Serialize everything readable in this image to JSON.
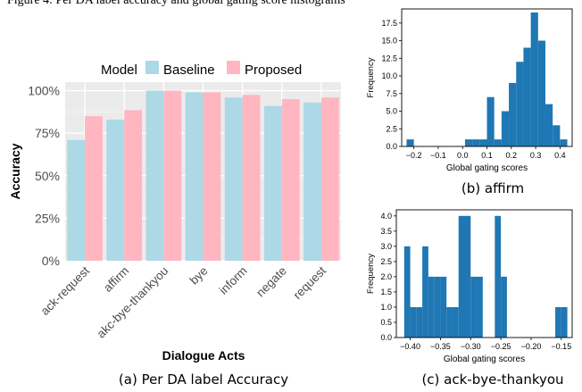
{
  "header_fragment": "Figure 4: Per DA label accuracy and global gating score histograms",
  "captions": {
    "a": "(a) Per DA label Accuracy",
    "b": "(b) affirm",
    "c": "(c) ack-bye-thankyou"
  },
  "colors": {
    "baseline": "#add8e6",
    "proposed": "#ffb6c1",
    "hist": "#1f77b4",
    "panel_bg": "#ebebeb"
  },
  "chart_data": [
    {
      "type": "bar",
      "legend_title": "Model",
      "legend_position": "top",
      "xlabel": "Dialogue Acts",
      "ylabel": "Accuracy",
      "ylim": [
        0,
        1.05
      ],
      "yticks": [
        0,
        0.25,
        0.5,
        0.75,
        1.0
      ],
      "ytick_labels": [
        "0%",
        "25%",
        "50%",
        "75%",
        "100%"
      ],
      "grid": true,
      "categories": [
        "ack-request",
        "affirm",
        "akc-bye-thankyou",
        "bye",
        "inform",
        "negate",
        "request"
      ],
      "series": [
        {
          "name": "Baseline",
          "values": [
            0.71,
            0.83,
            1.0,
            0.99,
            0.96,
            0.91,
            0.93
          ]
        },
        {
          "name": "Proposed",
          "values": [
            0.85,
            0.885,
            1.0,
            0.99,
            0.975,
            0.95,
            0.96
          ]
        }
      ]
    },
    {
      "type": "bar",
      "subtype": "histogram",
      "xlabel": "Global gating scores",
      "ylabel": "Frequency",
      "xlim": [
        -0.25,
        0.45
      ],
      "ylim": [
        0,
        19.5
      ],
      "xticks": [
        -0.2,
        -0.1,
        0.0,
        0.1,
        0.2,
        0.3,
        0.4
      ],
      "xtick_labels": [
        "−0.2",
        "−0.1",
        "0.0",
        "0.1",
        "0.2",
        "0.3",
        "0.4"
      ],
      "yticks": [
        0,
        2.5,
        5,
        7.5,
        10,
        12.5,
        15,
        17.5
      ],
      "ytick_labels": [
        "0.0",
        "2.5",
        "5.0",
        "7.5",
        "10.0",
        "12.5",
        "15.0",
        "17.5"
      ],
      "bin_edges": [
        -0.23,
        -0.2,
        -0.17,
        -0.14,
        -0.11,
        -0.08,
        -0.05,
        -0.02,
        0.01,
        0.04,
        0.07,
        0.1,
        0.13,
        0.16,
        0.19,
        0.22,
        0.25,
        0.28,
        0.31,
        0.34,
        0.37,
        0.4,
        0.43
      ],
      "counts": [
        1,
        0,
        0,
        0,
        0,
        0,
        0,
        0,
        1,
        1,
        1,
        7,
        1,
        5,
        9,
        12,
        14,
        19,
        15,
        6,
        3,
        1
      ]
    },
    {
      "type": "bar",
      "subtype": "histogram",
      "xlabel": "Global gating scores",
      "ylabel": "Frequency",
      "xlim": [
        -0.423,
        -0.132
      ],
      "ylim": [
        0,
        4.2
      ],
      "xticks": [
        -0.4,
        -0.35,
        -0.3,
        -0.25,
        -0.2,
        -0.15
      ],
      "xtick_labels": [
        "−0.40",
        "−0.35",
        "−0.30",
        "−0.25",
        "−0.20",
        "−0.15"
      ],
      "yticks": [
        0,
        0.5,
        1,
        1.5,
        2,
        2.5,
        3,
        3.5,
        4
      ],
      "ytick_labels": [
        "0.0",
        "0.5",
        "1.0",
        "1.5",
        "2.0",
        "2.5",
        "3.0",
        "3.5",
        "4.0"
      ],
      "bin_edges": [
        -0.41,
        -0.4,
        -0.39,
        -0.38,
        -0.37,
        -0.36,
        -0.35,
        -0.34,
        -0.33,
        -0.32,
        -0.31,
        -0.3,
        -0.29,
        -0.28,
        -0.27,
        -0.26,
        -0.25,
        -0.24,
        -0.23,
        -0.22,
        -0.21,
        -0.2,
        -0.19,
        -0.18,
        -0.17,
        -0.16,
        -0.15,
        -0.14
      ],
      "counts": [
        3,
        1,
        1,
        3,
        2,
        2,
        2,
        1,
        1,
        4,
        4,
        2,
        2,
        0,
        0,
        4,
        2,
        0,
        0,
        0,
        0,
        0,
        0,
        0,
        0,
        1,
        1
      ]
    }
  ]
}
